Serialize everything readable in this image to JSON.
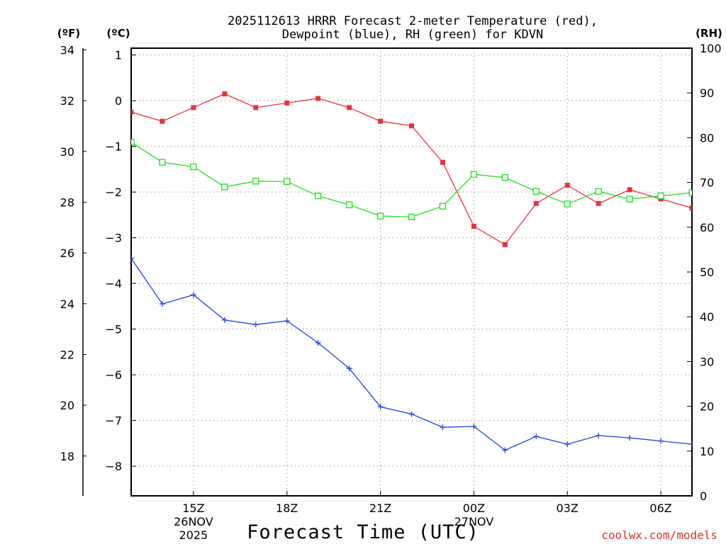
{
  "chart_data": {
    "type": "line",
    "title_line1": "2025112613 HRRR Forecast 2-meter Temperature (red),",
    "title_line2": "Dewpoint (blue), RH (green) for KDVN",
    "xlabel": "Forecast Time (UTC)",
    "credit": "coolwx.com/models",
    "unit_f": "(ºF)",
    "unit_c": "(ºC)",
    "unit_rh": "(RH)",
    "x_hours": [
      13,
      14,
      15,
      16,
      17,
      18,
      19,
      20,
      21,
      22,
      23,
      24,
      25,
      26,
      27,
      28,
      29,
      30,
      31
    ],
    "xlim": [
      13,
      31
    ],
    "x_ticks": [
      {
        "hour": 15,
        "label": "15Z",
        "date": "26NOV",
        "year": "2025"
      },
      {
        "hour": 18,
        "label": "18Z",
        "date": "",
        "year": ""
      },
      {
        "hour": 21,
        "label": "21Z",
        "date": "",
        "year": ""
      },
      {
        "hour": 24,
        "label": "00Z",
        "date": "27NOV",
        "year": ""
      },
      {
        "hour": 27,
        "label": "03Z",
        "date": "",
        "year": ""
      },
      {
        "hour": 30,
        "label": "06Z",
        "date": "",
        "year": ""
      }
    ],
    "y_celsius": {
      "lim": [
        -8.65,
        1.15
      ],
      "ticks": [
        "1",
        "0",
        "−1",
        "−2",
        "−3",
        "−4",
        "−5",
        "−6",
        "−7",
        "−8"
      ],
      "tick_values": [
        1,
        0,
        -1,
        -2,
        -3,
        -4,
        -5,
        -6,
        -7,
        -8
      ]
    },
    "y_fahrenheit": {
      "ticks": [
        "34",
        "32",
        "30",
        "28",
        "26",
        "24",
        "22",
        "20",
        "18"
      ],
      "tick_values": [
        34,
        32,
        30,
        28,
        26,
        24,
        22,
        20,
        18
      ]
    },
    "y_rh": {
      "lim": [
        0,
        100
      ],
      "ticks": [
        "100",
        "90",
        "80",
        "70",
        "60",
        "50",
        "40",
        "30",
        "20",
        "10",
        "0"
      ],
      "tick_values": [
        100,
        90,
        80,
        70,
        60,
        50,
        40,
        30,
        20,
        10,
        0
      ]
    },
    "series": [
      {
        "name": "Temperature",
        "unit": "C",
        "color": "#e8323a",
        "marker": "filled-square",
        "values": [
          -0.25,
          -0.45,
          -0.15,
          0.15,
          -0.15,
          -0.05,
          0.05,
          -0.15,
          -0.45,
          -0.55,
          -1.35,
          -2.75,
          -3.15,
          -2.25,
          -1.85,
          -2.25,
          -1.95,
          -2.15,
          -2.35
        ]
      },
      {
        "name": "Dewpoint",
        "unit": "C",
        "color": "#2040e0",
        "marker": "plus",
        "values": [
          -3.45,
          -4.45,
          -4.25,
          -4.8,
          -4.9,
          -4.82,
          -5.3,
          -5.86,
          -6.7,
          -6.86,
          -7.15,
          -7.13,
          -7.65,
          -7.35,
          -7.52,
          -7.33,
          -7.38,
          -7.45,
          -7.52
        ]
      },
      {
        "name": "RH",
        "unit": "%",
        "color": "#20dd20",
        "marker": "open-square",
        "values": [
          79,
          74.5,
          73.5,
          69,
          70.3,
          70.2,
          67,
          65,
          62.5,
          62.3,
          64.7,
          71.8,
          71.1,
          68,
          65.2,
          68,
          66.3,
          67,
          67.7
        ]
      }
    ]
  }
}
